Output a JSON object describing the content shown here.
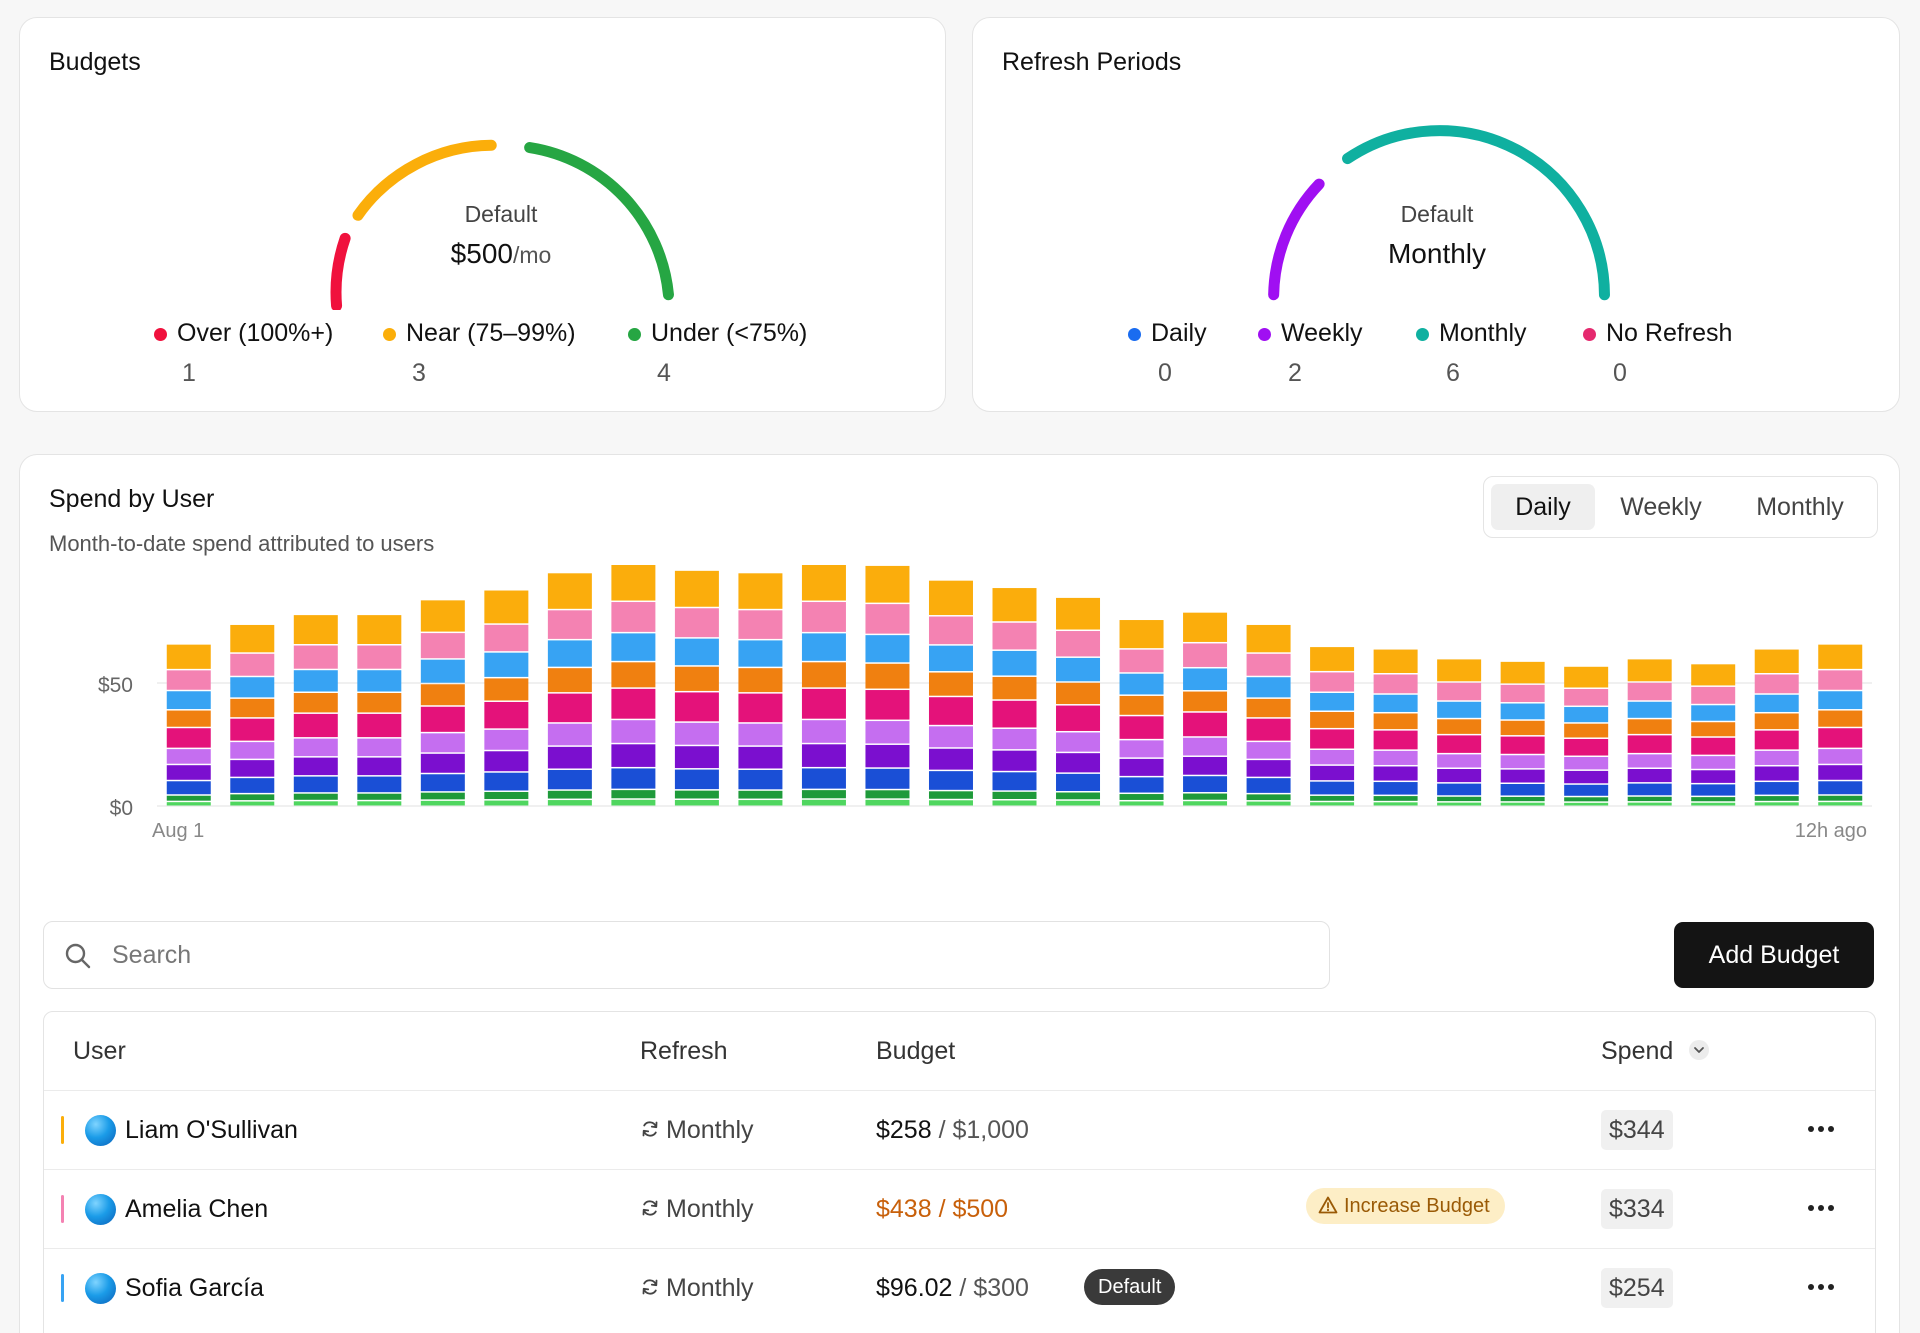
{
  "budgets": {
    "title": "Budgets",
    "gauge_label": "Default",
    "gauge_value": "$500",
    "gauge_unit": "/mo",
    "legend": [
      {
        "label": "Over (100%+)",
        "count": "1",
        "color": "#f0113d"
      },
      {
        "label": "Near (75–99%)",
        "count": "3",
        "color": "#fbae0a"
      },
      {
        "label": "Under (<75%)",
        "count": "4",
        "color": "#26a643"
      }
    ]
  },
  "refresh_periods": {
    "title": "Refresh Periods",
    "gauge_label": "Default",
    "gauge_value": "Monthly",
    "legend": [
      {
        "label": "Daily",
        "count": "0",
        "color": "#1a6cf0"
      },
      {
        "label": "Weekly",
        "count": "2",
        "color": "#a00ff2"
      },
      {
        "label": "Monthly",
        "count": "6",
        "color": "#0fb0a0"
      },
      {
        "label": "No Refresh",
        "count": "0",
        "color": "#e52a6f"
      }
    ]
  },
  "spend_by_user": {
    "title": "Spend by User",
    "subtitle": "Month-to-date spend attributed to users",
    "periods": [
      "Daily",
      "Weekly",
      "Monthly"
    ],
    "active_period": "Daily"
  },
  "chart_data": {
    "type": "bar",
    "stacked": true,
    "x_start_label": "Aug 1",
    "x_end_label": "12h ago",
    "y_ticks": [
      "$0",
      "$50"
    ],
    "ylim": [
      0,
      100
    ],
    "grid": true,
    "segment_colors": [
      "#4fd65f",
      "#1e9a3a",
      "#1a4fd6",
      "#7b0fcf",
      "#c56ef0",
      "#e4127a",
      "#f08010",
      "#37a3f3",
      "#f482b2",
      "#fbad0c"
    ],
    "totals": [
      66,
      74,
      78,
      78,
      84,
      88,
      95,
      99,
      96,
      95,
      99,
      98,
      92,
      89,
      85,
      76,
      79,
      74,
      65,
      64,
      60,
      59,
      57,
      60,
      58,
      64,
      66
    ]
  },
  "search": {
    "placeholder": "Search",
    "value": ""
  },
  "add_button": "Add Budget",
  "table": {
    "columns": {
      "user": "User",
      "refresh": "Refresh",
      "budget": "Budget",
      "spend": "Spend"
    },
    "rows": [
      {
        "color": "#fbae0a",
        "name": "Liam O'Sullivan",
        "refresh": "Monthly",
        "used": "$258",
        "limit": "$1,000",
        "spend": "$344",
        "status": "normal",
        "badge": ""
      },
      {
        "color": "#f482b2",
        "name": "Amelia Chen",
        "refresh": "Monthly",
        "used": "$438",
        "limit": "$500",
        "spend": "$334",
        "status": "warn",
        "badge": "Increase Budget"
      },
      {
        "color": "#37a3f3",
        "name": "Sofia García",
        "refresh": "Monthly",
        "used": "$96.02",
        "limit": "$300",
        "spend": "$254",
        "status": "normal",
        "badge": "Default"
      }
    ]
  }
}
